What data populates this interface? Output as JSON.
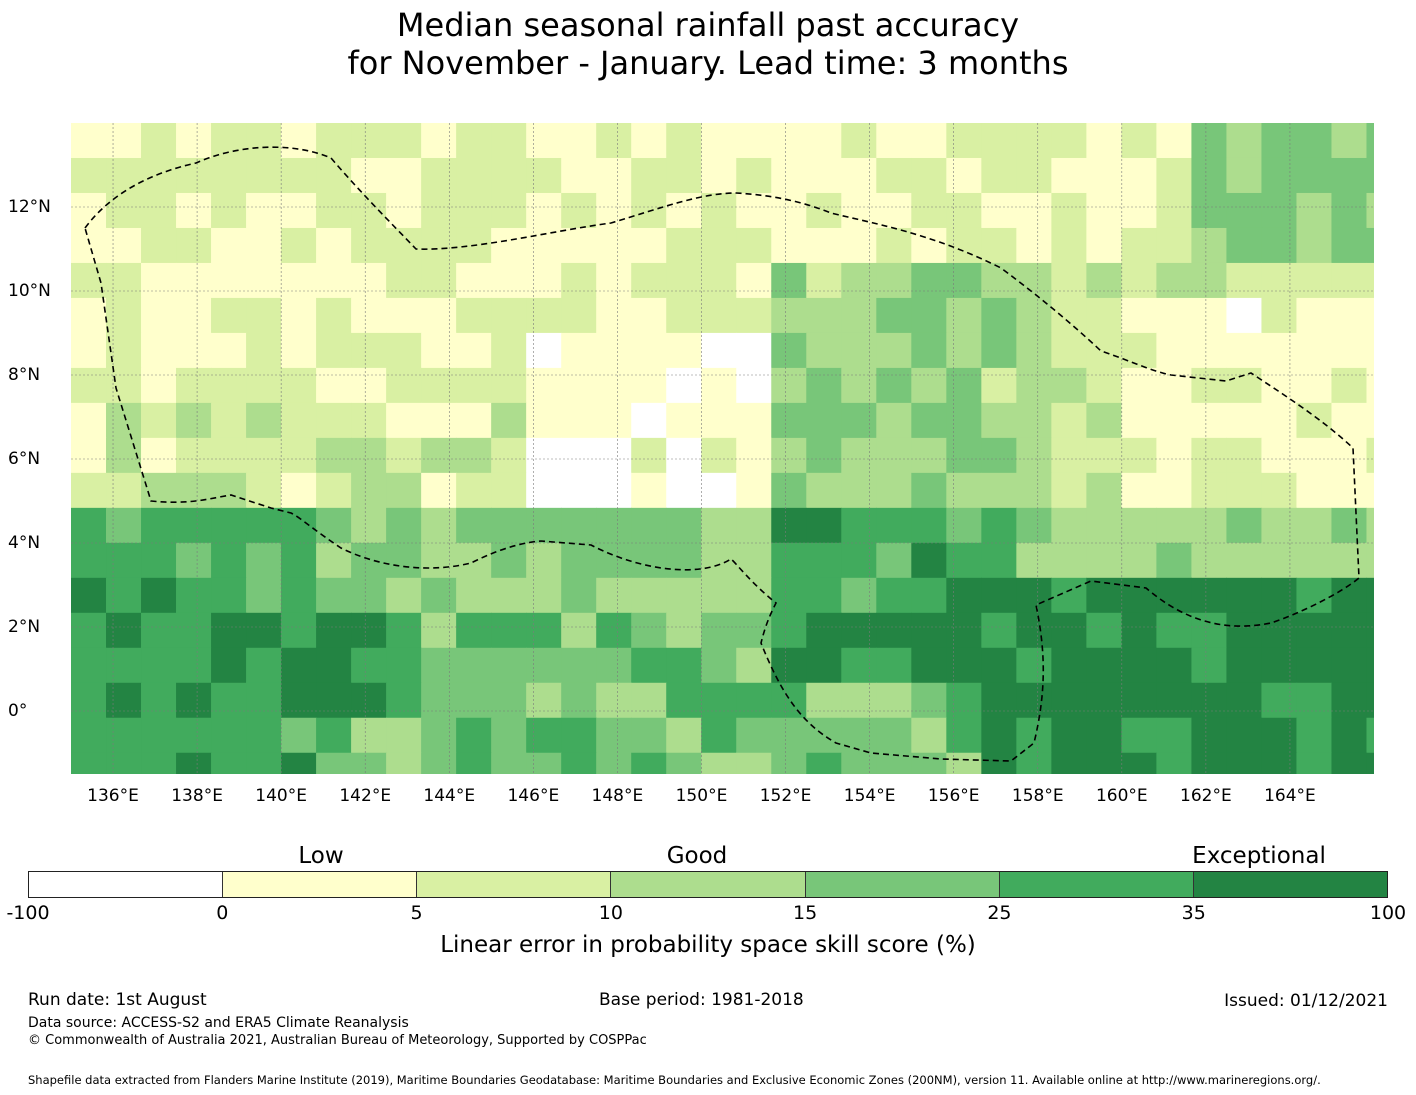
{
  "title_line1": "Median seasonal rainfall past accuracy",
  "title_line2": "for November - January. Lead time: 3 months",
  "map": {
    "lon_range": [
      135,
      166
    ],
    "lat_range": [
      -1.5,
      14
    ],
    "x_ticks": [
      "136°E",
      "138°E",
      "140°E",
      "142°E",
      "144°E",
      "146°E",
      "148°E",
      "150°E",
      "152°E",
      "154°E",
      "156°E",
      "158°E",
      "160°E",
      "162°E",
      "164°E"
    ],
    "y_ticks": [
      "12°N",
      "10°N",
      "8°N",
      "6°N",
      "4°N",
      "2°N",
      "0°"
    ],
    "grid": true,
    "boundary": "dashed"
  },
  "colorbar": {
    "colors": [
      "#ffffff",
      "#ffffcc",
      "#d9f0a3",
      "#addd8e",
      "#78c679",
      "#41ab5d",
      "#238443"
    ],
    "ticks": [
      "-100",
      "0",
      "5",
      "10",
      "15",
      "25",
      "35",
      "100"
    ],
    "category_labels": [
      "Low",
      "Good",
      "Exceptional"
    ],
    "title": "Linear error in probability space skill score (%)"
  },
  "footer": {
    "run_date": "Run date: 1st August",
    "base_period": "Base period: 1981-2018",
    "issued": "Issued: 01/12/2021",
    "data_source": "Data source: ACCESS-S2 and ERA5 Climate Reanalysis",
    "copyright": "© Commonwealth of Australia 2021, Australian Bureau of Meteorology, Supported by COSPPac",
    "shapefile": "Shapefile data extracted from Flanders Marine Institute (2019), Maritime Boundaries Geodatabase: Maritime Boundaries and Exclusive Economic Zones (200NM), version 11. Available online at http://www.marineregions.org/."
  }
}
